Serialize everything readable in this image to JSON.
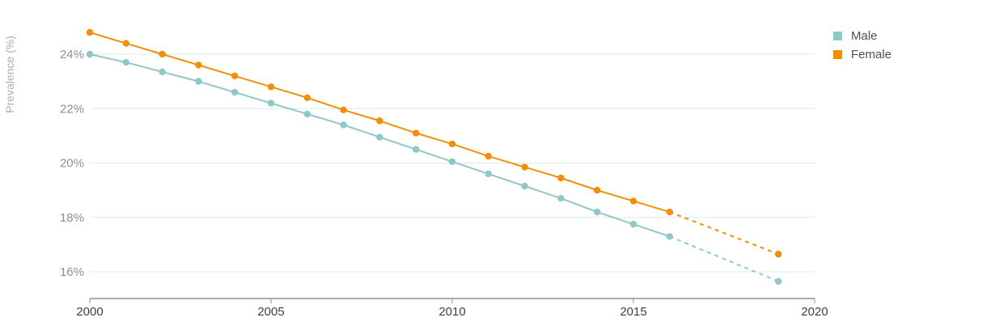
{
  "chart_data": {
    "type": "line",
    "ylabel": "Prevalence (%)",
    "xlabel": "",
    "xlim": [
      2000,
      2020
    ],
    "ylim": [
      15,
      25
    ],
    "x_ticks": [
      2000,
      2005,
      2010,
      2015,
      2020
    ],
    "x_tick_labels": [
      "2000",
      "2005",
      "2010",
      "2015",
      "2020"
    ],
    "y_ticks": [
      16,
      18,
      20,
      22,
      24
    ],
    "y_tick_labels": [
      "16%",
      "18%",
      "20%",
      "22%",
      "24%"
    ],
    "grid": true,
    "legend_position": "top-right",
    "series": [
      {
        "name": "Male",
        "color": "#8fc8c6",
        "x": [
          2000,
          2001,
          2002,
          2003,
          2004,
          2005,
          2006,
          2007,
          2008,
          2009,
          2010,
          2011,
          2012,
          2013,
          2014,
          2015,
          2016
        ],
        "values": [
          24.0,
          23.7,
          23.35,
          23.0,
          22.6,
          22.2,
          21.8,
          21.4,
          20.95,
          20.5,
          20.05,
          19.6,
          19.15,
          18.7,
          18.2,
          17.75,
          17.3
        ],
        "projected": {
          "x": [
            2016,
            2019
          ],
          "values": [
            17.3,
            15.65
          ]
        }
      },
      {
        "name": "Female",
        "color": "#f0900a",
        "x": [
          2000,
          2001,
          2002,
          2003,
          2004,
          2005,
          2006,
          2007,
          2008,
          2009,
          2010,
          2011,
          2012,
          2013,
          2014,
          2015,
          2016
        ],
        "values": [
          24.8,
          24.4,
          24.0,
          23.6,
          23.2,
          22.8,
          22.4,
          21.95,
          21.55,
          21.1,
          20.7,
          20.25,
          19.85,
          19.45,
          19.0,
          18.6,
          18.2
        ],
        "projected": {
          "x": [
            2016,
            2019
          ],
          "values": [
            18.2,
            16.65
          ]
        }
      }
    ]
  }
}
